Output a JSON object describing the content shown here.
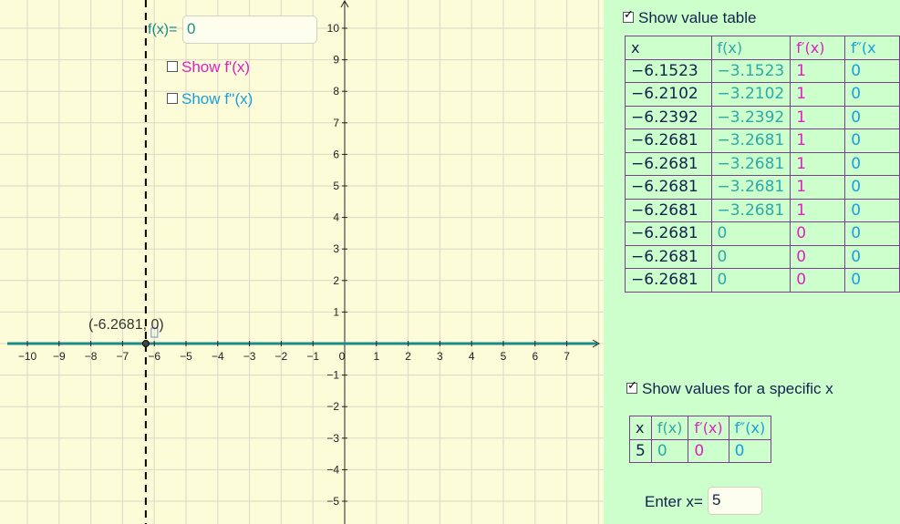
{
  "graph": {
    "function_label": "f(x)=",
    "function_value": "0",
    "show_f1_label": "Show f'(x)",
    "show_f2_label": "Show f''(x)",
    "point_label": "(-6.2681, 0)",
    "x_ticks": [
      "−10",
      "−9",
      "−8",
      "−7",
      "−6",
      "−5",
      "−4",
      "−3",
      "−2",
      "−1",
      "0",
      "1",
      "2",
      "3",
      "4",
      "5",
      "6",
      "7"
    ],
    "y_ticks": [
      "10",
      "9",
      "8",
      "7",
      "6",
      "5",
      "4",
      "3",
      "2",
      "1",
      "−1",
      "−2",
      "−3",
      "−4",
      "−5"
    ],
    "colors": {
      "curve": "#1a8c8c",
      "background": "#fdfcd8",
      "grid": "#d8d8c8"
    }
  },
  "value_table": {
    "checkbox_label": "Show value table",
    "checked": true,
    "headers": [
      "x",
      "f(x)",
      "f′(x)",
      "f″(x"
    ],
    "rows": [
      [
        "−6.1523",
        "−3.1523",
        "1",
        "0"
      ],
      [
        "−6.2102",
        "−3.2102",
        "1",
        "0"
      ],
      [
        "−6.2392",
        "−3.2392",
        "1",
        "0"
      ],
      [
        "−6.2681",
        "−3.2681",
        "1",
        "0"
      ],
      [
        "−6.2681",
        "−3.2681",
        "1",
        "0"
      ],
      [
        "−6.2681",
        "−3.2681",
        "1",
        "0"
      ],
      [
        "−6.2681",
        "−3.2681",
        "1",
        "0"
      ],
      [
        "−6.2681",
        "0",
        "0",
        "0"
      ],
      [
        "−6.2681",
        "0",
        "0",
        "0"
      ],
      [
        "−6.2681",
        "0",
        "0",
        "0"
      ]
    ]
  },
  "specific_x": {
    "checkbox_label": "Show values for a specific x",
    "checked": true,
    "headers": [
      "x",
      "f(x)",
      "f′(x)",
      "f″(x)"
    ],
    "values": [
      "5",
      "0",
      "0",
      "0"
    ],
    "enter_label": "Enter x=",
    "enter_value": "5"
  }
}
